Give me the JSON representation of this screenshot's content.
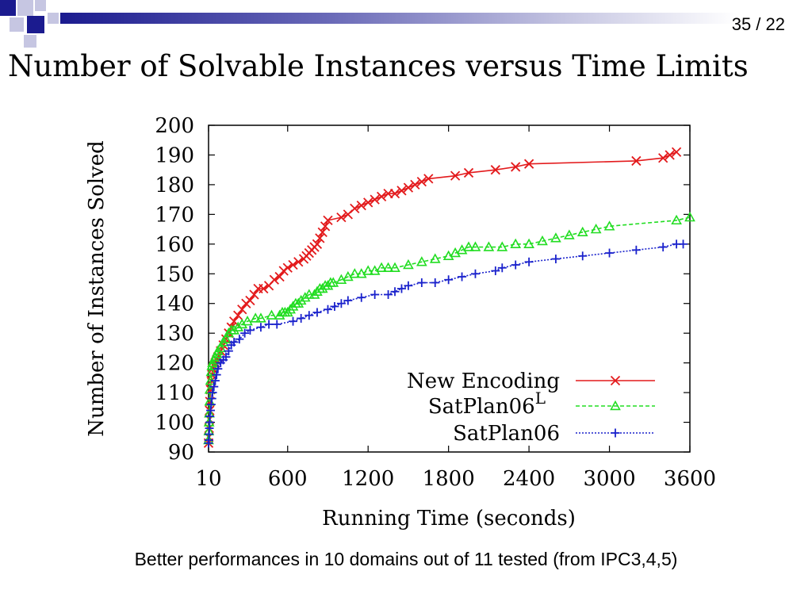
{
  "slide": {
    "page_number": "35 / 22",
    "title": "Number of Solvable Instances versus Time Limits",
    "footnote": "Better performances in 10 domains out of 11 tested (from IPC3,4,5)"
  },
  "colors": {
    "header_blue": "#1b1b8f",
    "header_light": "#c6c6e2",
    "new_encoding": "#e31a1c",
    "satplan06_l": "#22dd22",
    "satplan06": "#1a22cc"
  },
  "chart_data": {
    "type": "line",
    "title": "",
    "xlabel": "Running Time (seconds)",
    "ylabel": "Number of Instances Solved",
    "xlim": [
      10,
      3600
    ],
    "ylim": [
      90,
      200
    ],
    "x_ticks": [
      10,
      600,
      1200,
      1800,
      2400,
      3000,
      3600
    ],
    "y_ticks": [
      90,
      100,
      110,
      120,
      130,
      140,
      150,
      160,
      170,
      180,
      190,
      200
    ],
    "grid": false,
    "legend_position": "bottom-right",
    "series": [
      {
        "name": "New Encoding",
        "color": "#e31a1c",
        "line_style": "solid",
        "marker": "x",
        "x": [
          10,
          12,
          14,
          16,
          18,
          20,
          25,
          30,
          35,
          40,
          50,
          60,
          70,
          80,
          100,
          120,
          140,
          160,
          180,
          200,
          230,
          260,
          290,
          320,
          350,
          380,
          420,
          460,
          500,
          540,
          570,
          600,
          640,
          680,
          720,
          740,
          760,
          780,
          800,
          820,
          840,
          860,
          880,
          900,
          1000,
          1050,
          1100,
          1150,
          1200,
          1250,
          1300,
          1350,
          1400,
          1450,
          1500,
          1550,
          1600,
          1650,
          1850,
          1950,
          2150,
          2300,
          2400,
          3200,
          3400,
          3450,
          3500
        ],
        "y": [
          93,
          95,
          98,
          101,
          104,
          107,
          111,
          114,
          116,
          118,
          119,
          120,
          121,
          122,
          124,
          126,
          128,
          130,
          132,
          134,
          136,
          138,
          140,
          141,
          143,
          145,
          145,
          146,
          148,
          149,
          151,
          152,
          153,
          154,
          155,
          156,
          157,
          158,
          159,
          160,
          162,
          164,
          166,
          168,
          169,
          170,
          172,
          173,
          174,
          175,
          176,
          177,
          177,
          178,
          179,
          180,
          181,
          182,
          183,
          184,
          185,
          186,
          187,
          188,
          189,
          190,
          191
        ]
      },
      {
        "name": "SatPlan06L",
        "color": "#22dd22",
        "line_style": "dashed",
        "marker": "triangle",
        "x": [
          10,
          12,
          14,
          16,
          18,
          20,
          25,
          30,
          35,
          40,
          50,
          60,
          70,
          80,
          100,
          120,
          140,
          160,
          180,
          200,
          230,
          260,
          300,
          360,
          400,
          480,
          540,
          560,
          580,
          600,
          620,
          640,
          660,
          680,
          700,
          730,
          760,
          800,
          820,
          840,
          860,
          880,
          900,
          920,
          940,
          1000,
          1050,
          1100,
          1150,
          1200,
          1250,
          1300,
          1350,
          1400,
          1500,
          1600,
          1700,
          1800,
          1850,
          1900,
          1950,
          2000,
          2100,
          2200,
          2300,
          2400,
          2500,
          2600,
          2700,
          2800,
          2900,
          3000,
          3500,
          3600
        ],
        "y": [
          94,
          97,
          100,
          103,
          107,
          111,
          114,
          117,
          119,
          120,
          121,
          122,
          123,
          124,
          125,
          127,
          128,
          130,
          131,
          131,
          132,
          133,
          134,
          135,
          135,
          136,
          136,
          137,
          137,
          137,
          138,
          139,
          140,
          140,
          141,
          142,
          143,
          143,
          144,
          145,
          145,
          146,
          146,
          147,
          147,
          148,
          149,
          150,
          150,
          151,
          151,
          152,
          152,
          152,
          153,
          154,
          155,
          156,
          157,
          158,
          159,
          159,
          159,
          159,
          160,
          160,
          161,
          162,
          163,
          164,
          165,
          166,
          168,
          169
        ]
      },
      {
        "name": "SatPlan06",
        "color": "#1a22cc",
        "line_style": "dotted",
        "marker": "plus",
        "x": [
          10,
          12,
          14,
          16,
          18,
          20,
          25,
          30,
          35,
          40,
          50,
          60,
          70,
          80,
          100,
          120,
          140,
          160,
          180,
          200,
          240,
          280,
          320,
          400,
          460,
          520,
          640,
          700,
          760,
          820,
          900,
          950,
          1000,
          1050,
          1150,
          1250,
          1350,
          1400,
          1450,
          1500,
          1600,
          1700,
          1800,
          1900,
          2000,
          2150,
          2200,
          2300,
          2400,
          2600,
          2800,
          3000,
          3200,
          3400,
          3500,
          3550
        ],
        "y": [
          93,
          94,
          96,
          98,
          100,
          102,
          104,
          106,
          108,
          110,
          112,
          114,
          116,
          118,
          120,
          121,
          122,
          124,
          126,
          127,
          128,
          130,
          131,
          132,
          133,
          133,
          134,
          135,
          136,
          137,
          138,
          139,
          140,
          141,
          142,
          143,
          143,
          144,
          145,
          146,
          147,
          147,
          148,
          149,
          150,
          151,
          152,
          153,
          154,
          155,
          156,
          157,
          158,
          159,
          160,
          160
        ]
      }
    ],
    "legend": [
      {
        "label": "New Encoding",
        "superscript": ""
      },
      {
        "label": "SatPlan06",
        "superscript": "L"
      },
      {
        "label": "SatPlan06",
        "superscript": ""
      }
    ]
  }
}
